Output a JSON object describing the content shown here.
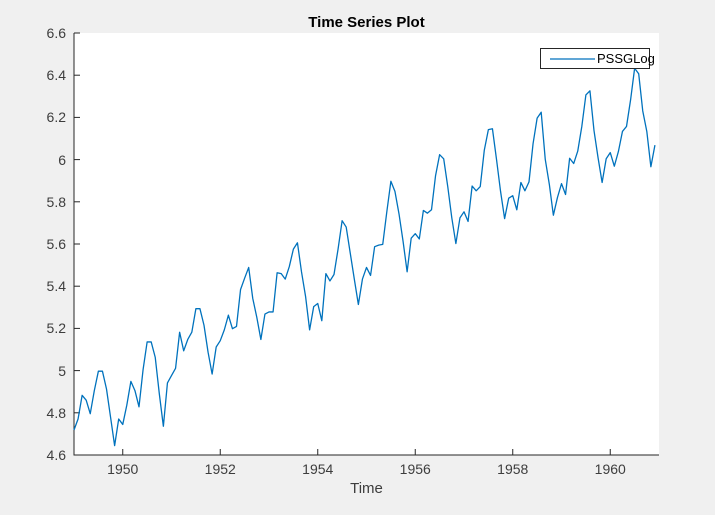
{
  "window": {
    "background": "#f0f0f0",
    "plot_background": "#ffffff"
  },
  "chart_data": {
    "type": "line",
    "title": "Time Series Plot",
    "xlabel": "Time",
    "ylabel": "",
    "legend": [
      "PSSGLog"
    ],
    "legend_position": "top-right",
    "grid": false,
    "line_color": "#0072BD",
    "axis_color": "#262626",
    "tick_label_color": "#3d3d3d",
    "xlim": [
      1949,
      1961
    ],
    "ylim": [
      4.6,
      6.6
    ],
    "xticks": [
      1950,
      1952,
      1954,
      1956,
      1958,
      1960
    ],
    "yticks": [
      4.6,
      4.8,
      5,
      5.2,
      5.4,
      5.6,
      5.8,
      6,
      6.2,
      6.4,
      6.6
    ],
    "series": [
      {
        "name": "PSSGLog",
        "start_year": 1949,
        "frequency": "monthly",
        "values": [
          4.7185,
          4.7707,
          4.8828,
          4.8598,
          4.7958,
          4.9053,
          4.9972,
          4.9972,
          4.9127,
          4.7791,
          4.6444,
          4.7707,
          4.7449,
          4.8363,
          4.9488,
          4.9053,
          4.8283,
          5.0039,
          5.1358,
          5.1358,
          5.0626,
          4.8903,
          4.7362,
          4.9416,
          4.9767,
          5.0106,
          5.1818,
          5.0938,
          5.1475,
          5.1818,
          5.2933,
          5.2933,
          5.2149,
          5.0876,
          4.9836,
          5.112,
          5.1417,
          5.193,
          5.2627,
          5.1985,
          5.2095,
          5.3845,
          5.4381,
          5.4889,
          5.3423,
          5.2523,
          5.1475,
          5.2679,
          5.2781,
          5.2781,
          5.4638,
          5.4596,
          5.4337,
          5.4931,
          5.5759,
          5.6058,
          5.4681,
          5.3519,
          5.193,
          5.3033,
          5.3181,
          5.2364,
          5.4596,
          5.425,
          5.4553,
          5.5759,
          5.7104,
          5.6802,
          5.5568,
          5.4337,
          5.3132,
          5.4337,
          5.4889,
          5.451,
          5.5872,
          5.5947,
          5.5984,
          5.7526,
          5.8972,
          5.8493,
          5.743,
          5.6131,
          5.4681,
          5.6276,
          5.649,
          5.624,
          5.7589,
          5.7462,
          5.7621,
          5.9243,
          6.0234,
          6.0039,
          5.8721,
          5.7236,
          5.6021,
          5.7236,
          5.7526,
          5.7071,
          5.8749,
          5.8522,
          5.8721,
          6.045,
          6.142,
          6.1463,
          6.0014,
          5.8493,
          5.7203,
          5.8171,
          5.8289,
          5.7621,
          5.8916,
          5.8522,
          5.8944,
          6.0753,
          6.1964,
          6.2246,
          6.0014,
          5.8833,
          5.7366,
          5.8201,
          5.8861,
          5.8348,
          6.0064,
          5.9814,
          6.0403,
          6.157,
          6.3063,
          6.3261,
          6.1377,
          6.0088,
          5.8916,
          6.0039,
          6.0331,
          5.9687,
          6.0379,
          6.1334,
          6.157,
          6.2823,
          6.4329,
          6.4069,
          6.2305,
          6.1334,
          5.9661,
          6.0684
        ]
      }
    ]
  }
}
